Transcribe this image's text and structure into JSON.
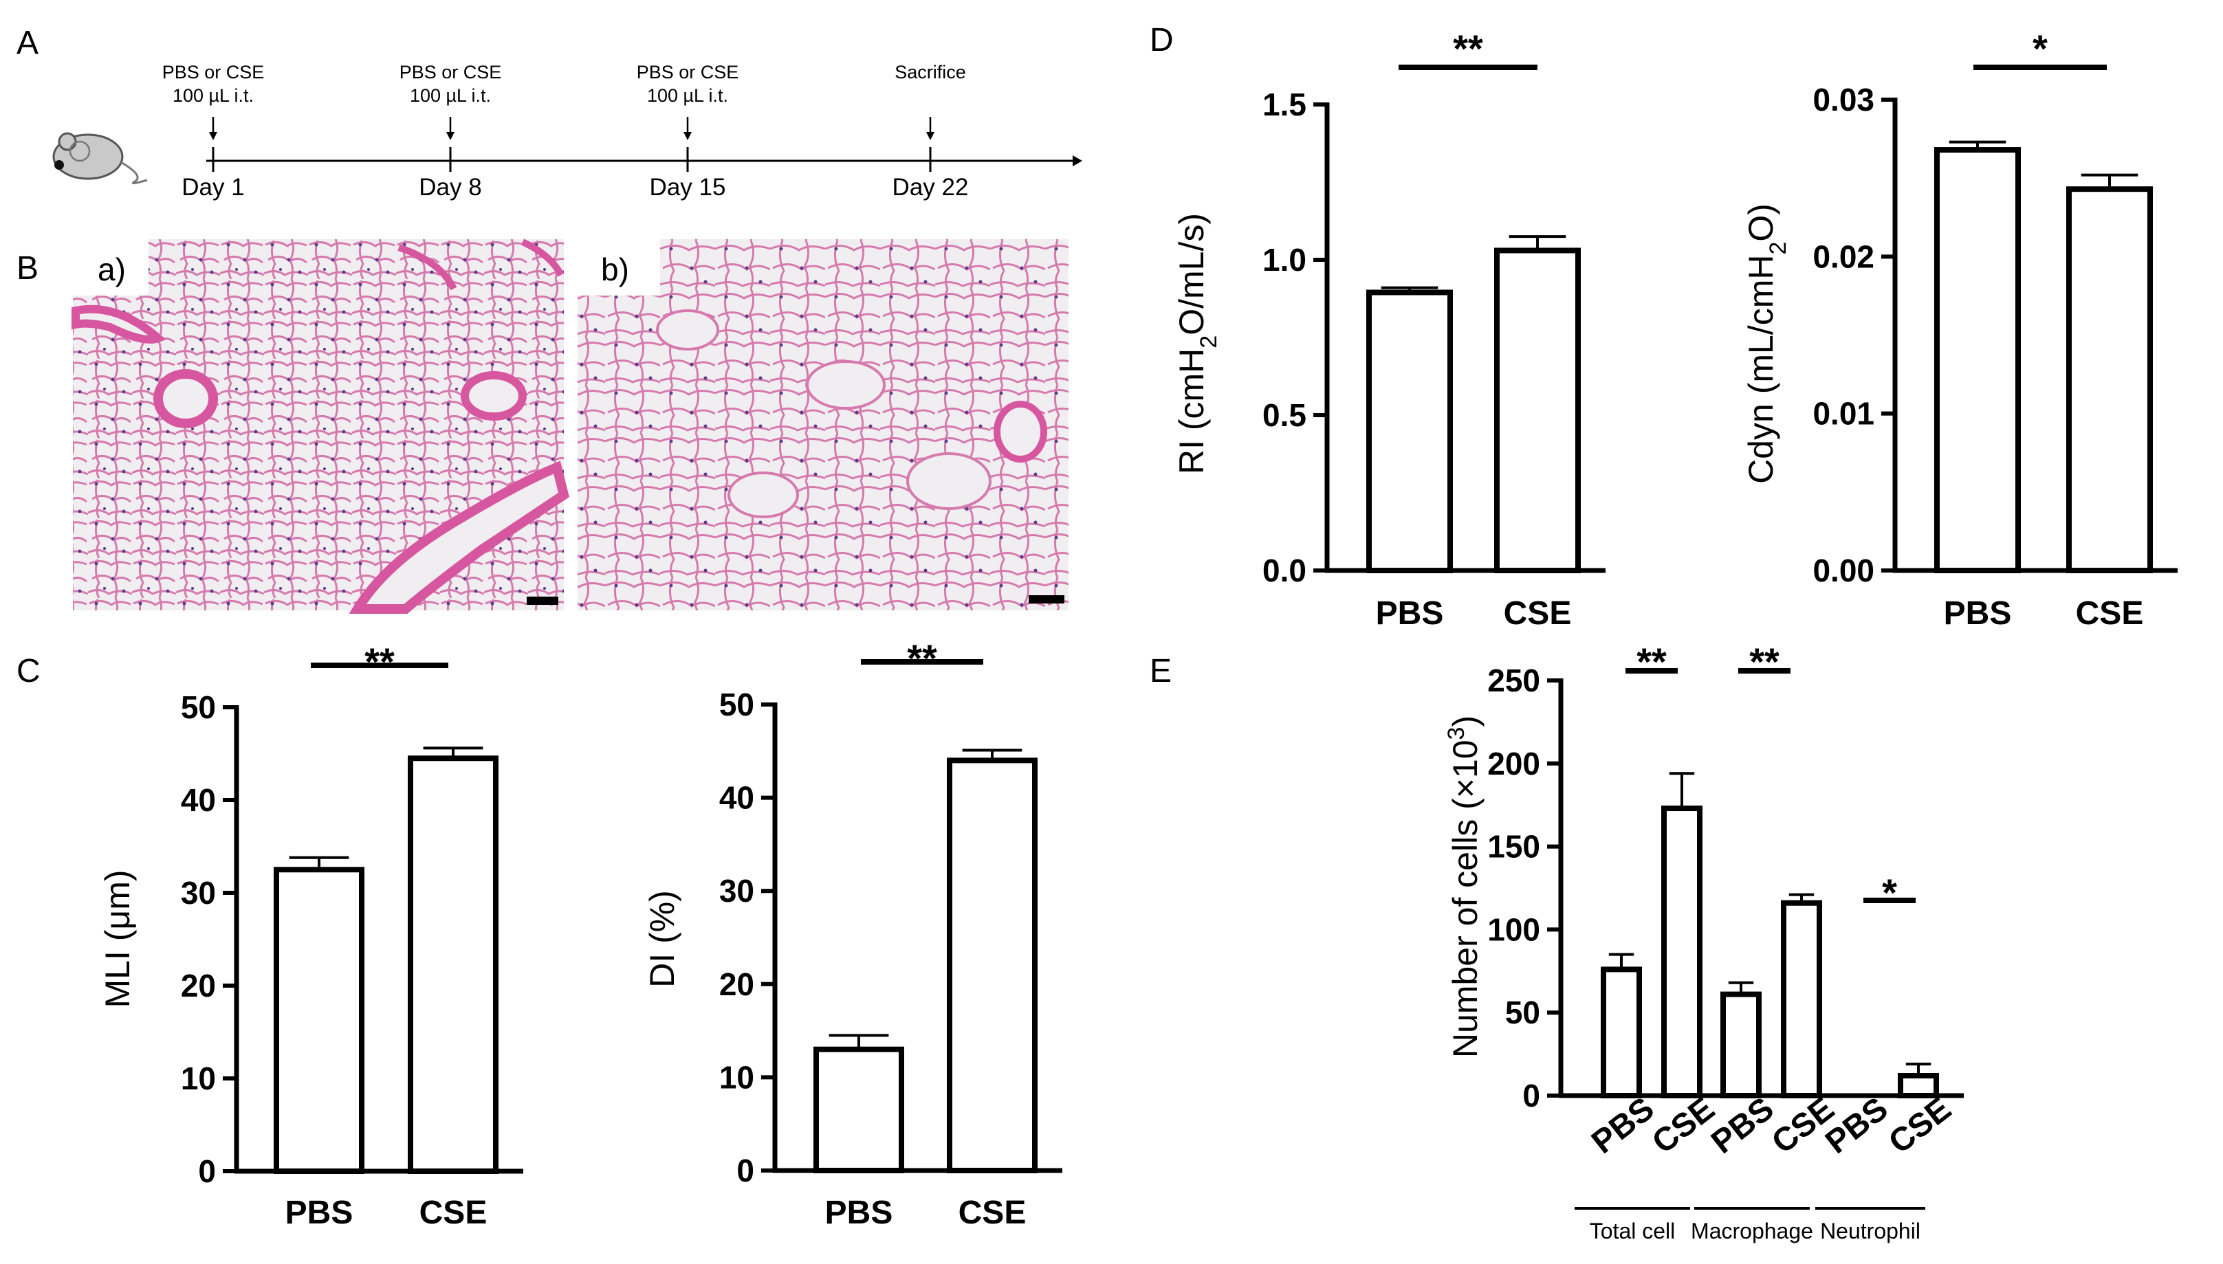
{
  "panels": {
    "A": "A",
    "B": "B",
    "C": "C",
    "D": "D",
    "E": "E"
  },
  "timeline": {
    "events": [
      {
        "label_line1": "PBS or CSE",
        "label_line2": "100 µL i.t.",
        "day": "Day 1"
      },
      {
        "label_line1": "PBS or CSE",
        "label_line2": "100 µL i.t.",
        "day": "Day 8"
      },
      {
        "label_line1": "PBS or CSE",
        "label_line2": "100 µL i.t.",
        "day": "Day 15"
      },
      {
        "label_line1": "Sacrifice",
        "label_line2": "",
        "day": "Day 22"
      }
    ]
  },
  "histology": {
    "a": "a)",
    "b": "b)"
  },
  "colors": {
    "tissue_bg": "#e9dde6",
    "tissue_pink": "#d6579f",
    "airspace": "#f1eef1",
    "ink": "#000000",
    "mouse": "#c9c9c9"
  },
  "icons": {
    "mouse": "mouse-icon"
  },
  "chart_data": [
    {
      "id": "mli",
      "type": "bar",
      "categories": [
        "PBS",
        "CSE"
      ],
      "values": [
        32.5,
        44.5
      ],
      "errors": [
        1.3,
        1.1
      ],
      "ylabel": "MLI (μm)",
      "ylim": [
        0,
        50
      ],
      "yticks": [
        "0",
        "10",
        "20",
        "30",
        "40",
        "50"
      ],
      "significance": [
        {
          "label": "**",
          "from": 0,
          "to": 1
        }
      ]
    },
    {
      "id": "di",
      "type": "bar",
      "categories": [
        "PBS",
        "CSE"
      ],
      "values": [
        13.0,
        44.0
      ],
      "errors": [
        1.5,
        1.1
      ],
      "ylabel": "DI (%)",
      "ylim": [
        0,
        50
      ],
      "yticks": [
        "0",
        "10",
        "20",
        "30",
        "40",
        "50"
      ],
      "significance": [
        {
          "label": "**",
          "from": 0,
          "to": 1
        }
      ]
    },
    {
      "id": "ri",
      "type": "bar",
      "categories": [
        "PBS",
        "CSE"
      ],
      "values": [
        0.895,
        1.03
      ],
      "errors": [
        0.015,
        0.045
      ],
      "ylabel_parts": [
        "RI (cmH",
        "2",
        "O/mL/s)"
      ],
      "ylim": [
        0,
        1.5
      ],
      "yticks": [
        "0.0",
        "0.5",
        "1.0",
        "1.5"
      ],
      "significance": [
        {
          "label": "**",
          "from": 0,
          "to": 1
        }
      ]
    },
    {
      "id": "cdyn",
      "type": "bar",
      "categories": [
        "PBS",
        "CSE"
      ],
      "values": [
        0.0268,
        0.0243
      ],
      "errors": [
        0.0005,
        0.0009
      ],
      "ylabel_parts": [
        "Cdyn (mL/cmH",
        "2",
        "O)"
      ],
      "ylim": [
        0,
        0.03
      ],
      "yticks": [
        "0.00",
        "0.01",
        "0.02",
        "0.03"
      ],
      "significance": [
        {
          "label": "*",
          "from": 0,
          "to": 1
        }
      ]
    },
    {
      "id": "cells",
      "type": "bar",
      "categories": [
        "PBS",
        "CSE",
        "PBS",
        "CSE",
        "PBS",
        "CSE"
      ],
      "groups": [
        "Total cell",
        "Macrophage",
        "Neutrophil"
      ],
      "values": [
        76,
        173,
        61,
        116,
        0,
        12
      ],
      "errors": [
        9,
        21,
        7,
        5,
        0,
        7
      ],
      "ylabel_parts": [
        "Number of cells (×10",
        "3",
        ")"
      ],
      "ylim": [
        0,
        250
      ],
      "yticks": [
        "0",
        "50",
        "100",
        "150",
        "200",
        "250"
      ],
      "significance": [
        {
          "label": "**",
          "group": 0
        },
        {
          "label": "**",
          "group": 1
        },
        {
          "label": "*",
          "group": 2
        }
      ]
    }
  ]
}
